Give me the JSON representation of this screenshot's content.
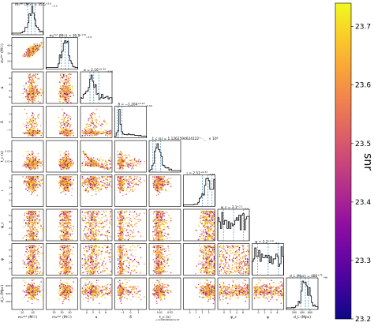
{
  "chart_data": {
    "type": "scatter",
    "subtype": "corner-plot",
    "parameters": [
      {
        "label": "m1det (M☉)",
        "axis_label_text": "$m_1^{det}$ (M$_\\odot$)",
        "title": "m₁ᵈᵉᵗ (M☉) = 35.5",
        "title_sup": "+2.6",
        "title_sub": "−3.3",
        "ticks": [
          "20",
          "40"
        ],
        "range": [
          18,
          45
        ]
      },
      {
        "label": "m2det (M☉)",
        "axis_label_text": "$m_2^{det}$ (M$_\\odot$)",
        "title": "m₂ᵈᵉᵗ (M☉) = 30.9",
        "title_sup": "+2.8",
        "title_sub": "−3.9",
        "ticks": [
          "20",
          "30",
          "40"
        ],
        "range": [
          18,
          40
        ]
      },
      {
        "label": "α",
        "axis_label_text": "α",
        "title": "α = 2.16",
        "title_sup": "+0.44",
        "title_sub": "−1.06",
        "ticks": [
          "0",
          "2",
          "4",
          "6"
        ],
        "range": [
          0,
          6.28
        ]
      },
      {
        "label": "δ",
        "axis_label_text": "δ",
        "title": "δ = −1.204",
        "title_sup": "+0.12",
        "title_sub": "−0.04",
        "ticks": [
          "−1",
          "0",
          "1"
        ],
        "range": [
          -1.57,
          1.57
        ]
      },
      {
        "label": "tc (s)",
        "axis_label_text": "t_c (s)",
        "title": "t_c (s) = 1.1262594624122",
        "title_sup": "+…",
        "title_sub": "−…",
        "title_tail": "× 10⁹",
        "ticks": [
          "0.01",
          "0.02"
        ],
        "range": [
          0.005,
          0.025
        ]
      },
      {
        "label": "ι",
        "axis_label_text": "ι",
        "title": "ι = 2.51",
        "title_sup": "+0.31",
        "title_sub": "−0.58",
        "ticks": [
          "0",
          "1",
          "2",
          "3"
        ],
        "range": [
          0,
          3.14
        ]
      },
      {
        "label": "φc",
        "axis_label_text": "φ_c",
        "title": "φ_c = 3.1",
        "title_sup": "+2.1",
        "title_sub": "−2.0",
        "ticks": [
          "0",
          "2",
          "4",
          "6"
        ],
        "range": [
          0,
          6.28
        ]
      },
      {
        "label": "ψ",
        "axis_label_text": "ψ",
        "title": "ψ = 3.2",
        "title_sup": "+2.0",
        "title_sub": "−2.1",
        "ticks": [
          "0",
          "2",
          "4",
          "6"
        ],
        "range": [
          0,
          6.28
        ]
      },
      {
        "label": "dL (Mpc)",
        "axis_label_text": "d_L (Mpc)",
        "title": "d_L (Mpc) = 480",
        "title_sup": "+75",
        "title_sub": "−96",
        "ticks": [
          "200",
          "400",
          "600"
        ],
        "range": [
          150,
          700
        ]
      }
    ],
    "xlabels": [
      "m₁ᵈᵉᵗ (M☉)",
      "m₂ᵈᵉᵗ (M☉)",
      "α",
      "δ",
      "t_c (s)",
      "ι",
      "φ_c",
      "ψ",
      "d_L (Mpc)"
    ],
    "ylabels": [
      "",
      "m₂ᵈᵉᵗ (M☉)",
      "α",
      "δ",
      "t_c (s)",
      "ι",
      "φ_c",
      "ψ",
      "d_L (Mpc)"
    ],
    "colorbar": {
      "label": "snr",
      "ticks": [
        "23.2",
        "23.3",
        "23.4",
        "23.5",
        "23.6",
        "23.7"
      ],
      "range": [
        23.2,
        23.74
      ],
      "colormap": "plasma"
    },
    "tc_offset_label": "+1.126259462412×10⁹",
    "legend": "none",
    "grid": false,
    "colors": {
      "hist": "#000000",
      "quantile": "#1f77b4",
      "marker_low": "#0d0887",
      "marker_high": "#f0f921"
    }
  }
}
